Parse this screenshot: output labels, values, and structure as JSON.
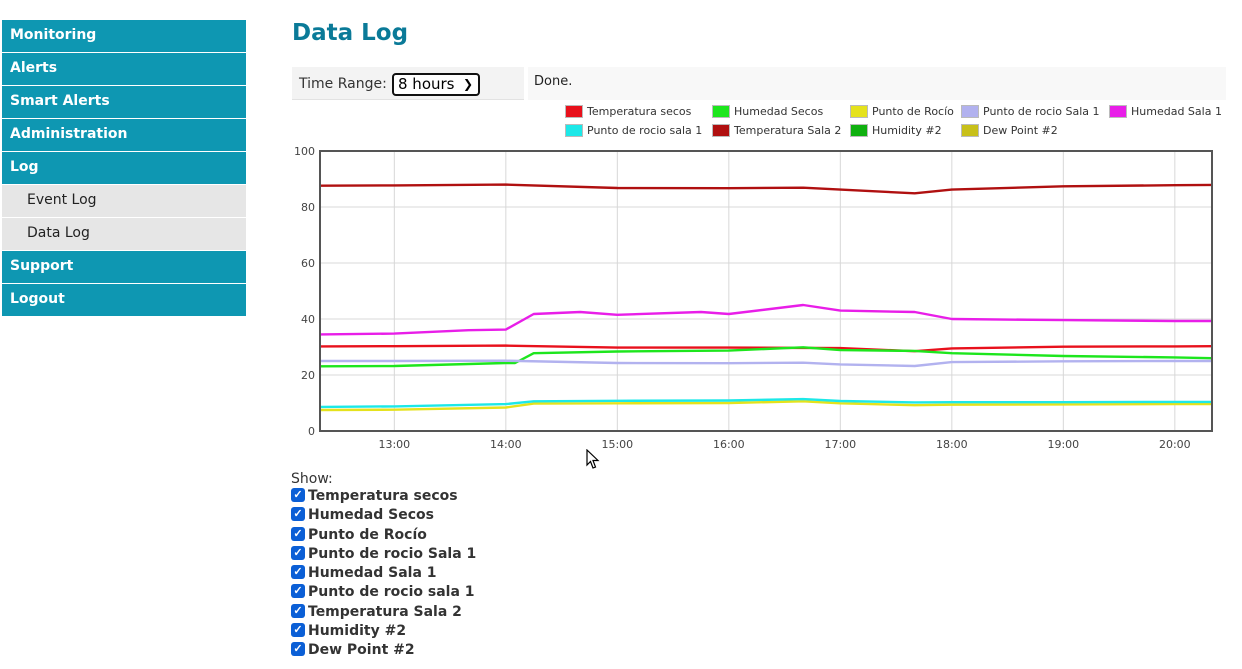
{
  "sidebar": {
    "items": [
      {
        "label": "Monitoring"
      },
      {
        "label": "Alerts"
      },
      {
        "label": "Smart Alerts"
      },
      {
        "label": "Administration"
      },
      {
        "label": "Log"
      }
    ],
    "subitems": [
      {
        "label": "Event Log"
      },
      {
        "label": "Data Log"
      }
    ],
    "bottom_items": [
      {
        "label": "Support"
      },
      {
        "label": "Logout"
      }
    ],
    "active_color": "#0e97b2"
  },
  "page": {
    "title": "Data Log"
  },
  "controls": {
    "time_range_label": "Time Range:",
    "time_range_value": "8 hours",
    "status": "Done."
  },
  "show": {
    "label": "Show:"
  },
  "chart_data": {
    "type": "line",
    "ylim": [
      0,
      100
    ],
    "yticks": [
      "0",
      "20",
      "40",
      "60",
      "80",
      "100"
    ],
    "x_range": [
      "12:20",
      "20:20"
    ],
    "xticks": [
      "13:00",
      "14:00",
      "15:00",
      "16:00",
      "17:00",
      "18:00",
      "19:00",
      "20:00"
    ],
    "legend_position": "top",
    "grid": true,
    "series": [
      {
        "name": "Temperatura secos",
        "color": "#e8111c",
        "x": [
          "12:20",
          "13:00",
          "14:00",
          "15:00",
          "16:00",
          "17:00",
          "17:40",
          "18:00",
          "19:00",
          "20:00",
          "20:20"
        ],
        "values": [
          30.2,
          30.3,
          30.5,
          29.8,
          29.8,
          29.6,
          28.5,
          29.5,
          30.1,
          30.2,
          30.3
        ]
      },
      {
        "name": "Humedad Secos",
        "color": "#1de61d",
        "x": [
          "12:20",
          "13:00",
          "14:00",
          "14:05",
          "14:15",
          "15:00",
          "16:00",
          "16:40",
          "17:00",
          "17:40",
          "18:00",
          "19:00",
          "20:00",
          "20:20"
        ],
        "values": [
          23.1,
          23.2,
          24.3,
          24.3,
          27.8,
          28.4,
          28.7,
          29.9,
          28.9,
          28.6,
          27.8,
          26.8,
          26.3,
          26.0
        ]
      },
      {
        "name": "Punto de Rocío",
        "color": "#e5e21c",
        "x": [
          "12:20",
          "13:00",
          "14:00",
          "14:15",
          "15:00",
          "16:00",
          "16:40",
          "17:00",
          "17:40",
          "18:00",
          "19:00",
          "20:00",
          "20:20"
        ],
        "values": [
          7.5,
          7.6,
          8.4,
          9.8,
          9.9,
          10.0,
          10.6,
          9.9,
          9.2,
          9.4,
          9.5,
          9.6,
          9.6
        ]
      },
      {
        "name": "Punto de rocio Sala 1",
        "color": "#b2b2ef",
        "x": [
          "12:20",
          "13:00",
          "14:00",
          "15:00",
          "16:00",
          "16:40",
          "17:00",
          "17:40",
          "18:00",
          "19:00",
          "20:00",
          "20:20"
        ],
        "values": [
          25.0,
          25.0,
          25.1,
          24.3,
          24.2,
          24.4,
          23.8,
          23.2,
          24.6,
          24.9,
          25.0,
          25.0
        ]
      },
      {
        "name": "Humedad Sala 1",
        "color": "#e81ee8",
        "x": [
          "12:20",
          "13:00",
          "13:40",
          "14:00",
          "14:15",
          "14:40",
          "15:00",
          "15:45",
          "16:00",
          "16:40",
          "17:00",
          "17:40",
          "18:00",
          "19:00",
          "20:00",
          "20:20"
        ],
        "values": [
          34.5,
          34.8,
          36.0,
          36.2,
          41.8,
          42.5,
          41.5,
          42.5,
          41.8,
          45.0,
          43.0,
          42.5,
          40.0,
          39.6,
          39.3,
          39.3
        ]
      },
      {
        "name": "Punto de rocio sala 1",
        "color": "#1de8e8",
        "x": [
          "12:20",
          "13:00",
          "14:00",
          "14:15",
          "15:00",
          "16:00",
          "16:40",
          "17:00",
          "17:40",
          "18:00",
          "19:00",
          "20:00",
          "20:20"
        ],
        "values": [
          8.6,
          8.8,
          9.6,
          10.6,
          10.8,
          10.9,
          11.4,
          10.7,
          10.2,
          10.3,
          10.3,
          10.4,
          10.4
        ]
      },
      {
        "name": "Temperatura Sala 2",
        "color": "#b01010",
        "x": [
          "12:20",
          "13:00",
          "14:00",
          "15:00",
          "16:00",
          "16:40",
          "17:00",
          "17:40",
          "18:00",
          "19:00",
          "20:00",
          "20:20"
        ],
        "values": [
          87.6,
          87.7,
          88.0,
          86.8,
          86.7,
          86.9,
          86.2,
          84.9,
          86.2,
          87.4,
          87.8,
          87.9
        ]
      },
      {
        "name": "Humidity #2",
        "color": "#10b010",
        "x": [],
        "values": []
      },
      {
        "name": "Dew Point #2",
        "color": "#c8c01a",
        "x": [],
        "values": []
      }
    ]
  }
}
